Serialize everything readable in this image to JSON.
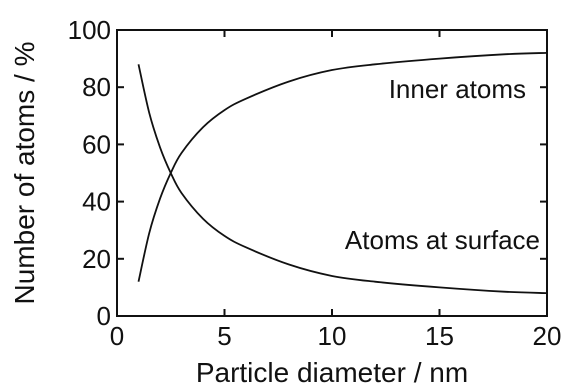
{
  "chart_data": {
    "type": "line",
    "title": "",
    "xlabel": "Particle diameter / nm",
    "ylabel": "Number of atoms / %",
    "xlim": [
      0,
      20
    ],
    "ylim": [
      0,
      100
    ],
    "x_ticks": [
      0,
      5,
      10,
      15,
      20
    ],
    "y_ticks": [
      0,
      20,
      40,
      60,
      80,
      100
    ],
    "x_tick_labels": [
      "0",
      "5",
      "10",
      "15",
      "20"
    ],
    "y_tick_labels": [
      "0",
      "20",
      "40",
      "60",
      "80",
      "100"
    ],
    "grid": false,
    "legend": "none",
    "annotations": {
      "inner": "Inner atoms",
      "surface": "Atoms at surface"
    },
    "series": [
      {
        "x": [
          1,
          1.5,
          2,
          2.5,
          3,
          4,
          5,
          6,
          8,
          10,
          12,
          15,
          18,
          20
        ],
        "values": [
          12,
          29,
          41,
          50,
          57,
          66,
          72,
          76,
          82,
          86,
          88,
          90,
          91.5,
          92
        ]
      },
      {
        "x": [
          1,
          1.5,
          2,
          2.5,
          3,
          4,
          5,
          6,
          8,
          10,
          12,
          15,
          18,
          20
        ],
        "values": [
          88,
          71,
          59,
          50,
          43,
          34,
          28,
          24,
          18,
          14,
          12,
          10,
          8.5,
          8
        ]
      }
    ]
  }
}
